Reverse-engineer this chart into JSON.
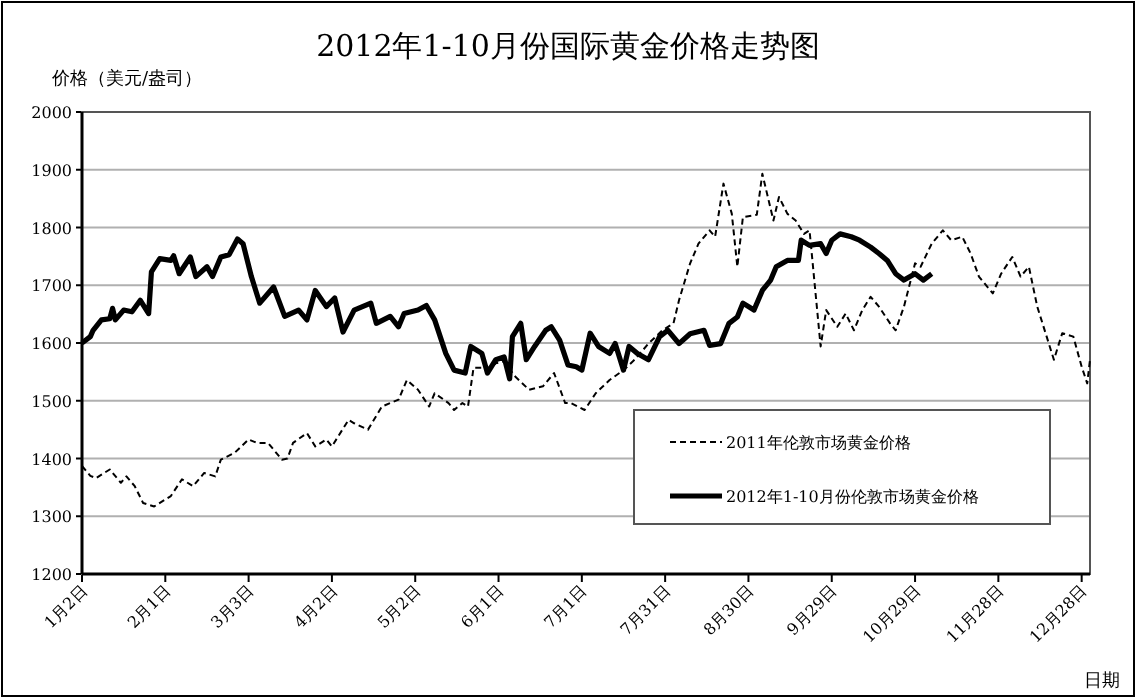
{
  "chart_data": {
    "type": "line",
    "title": "2012年1-10月份国际黄金价格走势图",
    "ylabel": "价格（美元/盎司）",
    "xlabel": "日期",
    "xlim": [
      "--01-02",
      "--12-31"
    ],
    "ylim": [
      1200,
      2000
    ],
    "xticks": [
      {
        "value": "--01-02",
        "label": "1月2日"
      },
      {
        "value": "--02-01",
        "label": "2月1日"
      },
      {
        "value": "--03-03",
        "label": "3月3日"
      },
      {
        "value": "--04-02",
        "label": "4月2日"
      },
      {
        "value": "--05-02",
        "label": "5月2日"
      },
      {
        "value": "--06-01",
        "label": "6月1日"
      },
      {
        "value": "--07-01",
        "label": "7月1日"
      },
      {
        "value": "--07-31",
        "label": "7月31日"
      },
      {
        "value": "--08-30",
        "label": "8月30日"
      },
      {
        "value": "--09-29",
        "label": "9月29日"
      },
      {
        "value": "--10-29",
        "label": "10月29日"
      },
      {
        "value": "--11-28",
        "label": "11月28日"
      },
      {
        "value": "--12-28",
        "label": "12月28日"
      }
    ],
    "yticks": [
      1200,
      1300,
      1400,
      1500,
      1600,
      1700,
      1800,
      1900,
      2000
    ],
    "grid": "y",
    "legend": "bottom right",
    "series": [
      {
        "name": "2011年伦敦市场黄金价格",
        "color": "#000000",
        "line_style": "dashed",
        "x": [
          "--01-02",
          "--01-05",
          "--01-07",
          "--01-12",
          "--01-16",
          "--01-18",
          "--01-21",
          "--01-24",
          "--01-28",
          "--02-03",
          "--02-07",
          "--02-11",
          "--02-15",
          "--02-19",
          "--02-21",
          "--02-26",
          "--03-03",
          "--03-06",
          "--03-10",
          "--03-15",
          "--03-17",
          "--03-19",
          "--03-24",
          "--03-27",
          "--03-31",
          "--04-02",
          "--04-08",
          "--04-10",
          "--04-15",
          "--04-20",
          "--04-26",
          "--04-29",
          "--05-03",
          "--05-07",
          "--05-09",
          "--05-14",
          "--05-16",
          "--05-19",
          "--05-21",
          "--05-23",
          "--05-26",
          "--05-28",
          "--05-31",
          "--06-03",
          "--06-07",
          "--06-12",
          "--06-17",
          "--06-21",
          "--06-25",
          "--06-27",
          "--07-02",
          "--07-06",
          "--07-11",
          "--07-16",
          "--07-20",
          "--07-25",
          "--07-30",
          "--08-03",
          "--08-05",
          "--08-09",
          "--08-12",
          "--08-16",
          "--08-18",
          "--08-21",
          "--08-24",
          "--08-26",
          "--08-28",
          "--09-02",
          "--09-04",
          "--09-08",
          "--09-10",
          "--09-13",
          "--09-16",
          "--09-19",
          "--09-21",
          "--09-25",
          "--09-27",
          "--10-01",
          "--10-04",
          "--10-07",
          "--10-10",
          "--10-13",
          "--10-16",
          "--10-20",
          "--10-22",
          "--10-25",
          "--10-29",
          "--10-31",
          "--11-04",
          "--11-08",
          "--11-11",
          "--11-15",
          "--11-18",
          "--11-21",
          "--11-26",
          "--11-29",
          "--12-03",
          "--12-06",
          "--12-09",
          "--12-12",
          "--12-15",
          "--12-18",
          "--12-21",
          "--12-25",
          "--12-28",
          "--12-30",
          "--12-31"
        ],
        "values": [
          1387,
          1370,
          1366,
          1381,
          1358,
          1369,
          1352,
          1323,
          1317,
          1335,
          1364,
          1352,
          1375,
          1369,
          1398,
          1410,
          1433,
          1427,
          1427,
          1398,
          1400,
          1427,
          1444,
          1421,
          1433,
          1421,
          1467,
          1461,
          1450,
          1490,
          1502,
          1536,
          1519,
          1490,
          1513,
          1496,
          1484,
          1496,
          1490,
          1557,
          1557,
          1553,
          1565,
          1568,
          1542,
          1519,
          1525,
          1548,
          1496,
          1496,
          1484,
          1513,
          1536,
          1553,
          1571,
          1599,
          1622,
          1634,
          1674,
          1738,
          1772,
          1795,
          1784,
          1876,
          1824,
          1732,
          1818,
          1822,
          1893,
          1812,
          1853,
          1824,
          1812,
          1789,
          1795,
          1594,
          1657,
          1628,
          1651,
          1622,
          1657,
          1680,
          1663,
          1634,
          1622,
          1663,
          1738,
          1732,
          1772,
          1795,
          1778,
          1784,
          1755,
          1715,
          1686,
          1720,
          1749,
          1715,
          1732,
          1663,
          1617,
          1571,
          1617,
          1611,
          1559,
          1530,
          1571
        ]
      },
      {
        "name": "2012年1-10月份伦敦市场黄金价格",
        "color": "#000000",
        "line_style": "solid",
        "x": [
          "--01-02",
          "--01-05",
          "--01-06",
          "--01-09",
          "--01-12",
          "--01-13",
          "--01-14",
          "--01-17",
          "--01-20",
          "--01-23",
          "--01-26",
          "--01-27",
          "--01-30",
          "--02-03",
          "--02-04",
          "--02-06",
          "--02-10",
          "--02-12",
          "--02-16",
          "--02-18",
          "--02-21",
          "--02-24",
          "--02-27",
          "--03-01",
          "--03-04",
          "--03-07",
          "--03-12",
          "--03-16",
          "--03-21",
          "--03-24",
          "--03-27",
          "--03-31",
          "--04-03",
          "--04-06",
          "--04-10",
          "--04-16",
          "--04-18",
          "--04-23",
          "--04-26",
          "--04-28",
          "--05-03",
          "--05-06",
          "--05-09",
          "--05-13",
          "--05-16",
          "--05-20",
          "--05-22",
          "--05-26",
          "--05-28",
          "--05-31",
          "--06-03",
          "--06-05",
          "--06-06",
          "--06-09",
          "--06-11",
          "--06-14",
          "--06-18",
          "--06-20",
          "--06-23",
          "--06-26",
          "--06-29",
          "--07-01",
          "--07-04",
          "--07-07",
          "--07-11",
          "--07-13",
          "--07-16",
          "--07-18",
          "--07-21",
          "--07-25",
          "--07-29",
          "--08-01",
          "--08-05",
          "--08-09",
          "--08-14",
          "--08-16",
          "--08-20",
          "--08-23",
          "--08-26",
          "--08-28",
          "--09-01",
          "--09-04",
          "--09-07",
          "--09-09",
          "--09-13",
          "--09-17",
          "--09-18",
          "--09-21",
          "--09-25",
          "--09-27",
          "--09-29",
          "--10-02",
          "--10-06",
          "--10-09",
          "--10-13",
          "--10-16",
          "--10-19",
          "--10-22",
          "--10-25",
          "--10-29",
          "--11-01",
          "--11-04"
        ],
        "values": [
          1600,
          1611,
          1622,
          1640,
          1642,
          1660,
          1640,
          1657,
          1654,
          1674,
          1651,
          1723,
          1746,
          1743,
          1751,
          1720,
          1749,
          1715,
          1732,
          1715,
          1749,
          1753,
          1780,
          1772,
          1715,
          1669,
          1697,
          1646,
          1657,
          1640,
          1691,
          1663,
          1678,
          1619,
          1657,
          1669,
          1634,
          1646,
          1628,
          1651,
          1657,
          1665,
          1640,
          1582,
          1553,
          1548,
          1594,
          1582,
          1548,
          1571,
          1576,
          1538,
          1611,
          1634,
          1571,
          1594,
          1622,
          1628,
          1605,
          1562,
          1559,
          1553,
          1617,
          1594,
          1582,
          1599,
          1553,
          1594,
          1582,
          1571,
          1611,
          1622,
          1599,
          1616,
          1622,
          1596,
          1599,
          1634,
          1645,
          1669,
          1657,
          1691,
          1709,
          1732,
          1743,
          1743,
          1778,
          1769,
          1772,
          1755,
          1778,
          1789,
          1784,
          1778,
          1766,
          1755,
          1743,
          1720,
          1709,
          1720,
          1709,
          1720
        ]
      }
    ]
  }
}
